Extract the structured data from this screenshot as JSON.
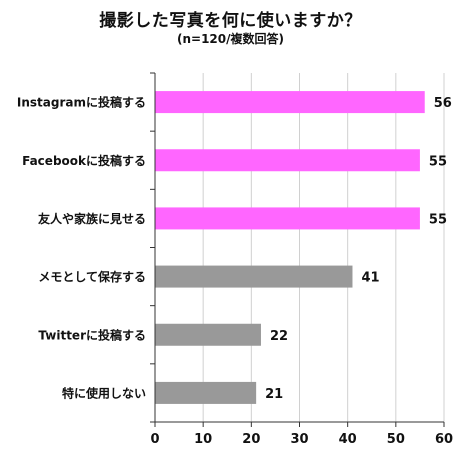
{
  "chart_data": {
    "type": "bar",
    "orientation": "horizontal",
    "title": "撮影した写真を何に使いますか？",
    "subtitle": "(n=120/複数回答)",
    "categories": [
      "Instagramに投稿する",
      "Facebookに投稿する",
      "友人や家族に見せる",
      "メモとして保存する",
      "Twitterに投稿する",
      "特に使用しない"
    ],
    "values": [
      56,
      55,
      55,
      41,
      22,
      21
    ],
    "bar_colors": [
      "#ff66ff",
      "#ff66ff",
      "#ff66ff",
      "#999999",
      "#999999",
      "#999999"
    ],
    "xlim": [
      0,
      60
    ],
    "xticks": [
      0,
      10,
      20,
      30,
      40,
      50,
      60
    ],
    "grid": "vertical",
    "data_labels": true
  }
}
